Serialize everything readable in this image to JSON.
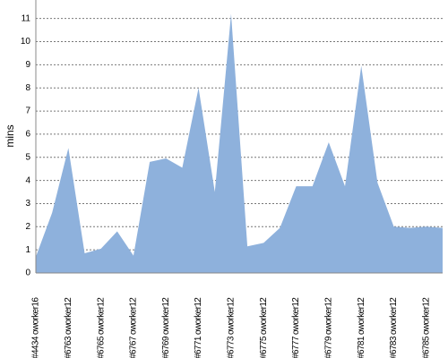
{
  "chart_data": {
    "type": "area",
    "y_label": "mins",
    "categories": [
      "#4434 oworker16",
      null,
      "#6763 oworker12",
      null,
      "#6765 oworker12",
      null,
      "#6767 oworker12",
      null,
      "#6769 oworker12",
      null,
      "#6771 oworker12",
      null,
      "#6773 oworker12",
      null,
      "#6775 oworker12",
      null,
      "#6777 oworker12",
      null,
      "#6779 oworker12",
      null,
      "#6781 oworker12",
      null,
      "#6783 oworker12",
      null,
      "#6785 oworker12",
      null
    ],
    "values": [
      0.7,
      2.6,
      5.4,
      0.85,
      1.05,
      1.8,
      0.75,
      4.8,
      4.95,
      4.55,
      8.0,
      3.5,
      11.2,
      1.15,
      1.3,
      1.95,
      3.75,
      3.75,
      5.65,
      3.75,
      8.95,
      3.9,
      2.0,
      1.95,
      2.0,
      1.95
    ],
    "color": "#8eb1dc",
    "ylim": [
      0,
      11.8
    ],
    "yticks": [
      0,
      1,
      2,
      3,
      4,
      5,
      6,
      7,
      8,
      9,
      10,
      11
    ],
    "grid": true
  }
}
